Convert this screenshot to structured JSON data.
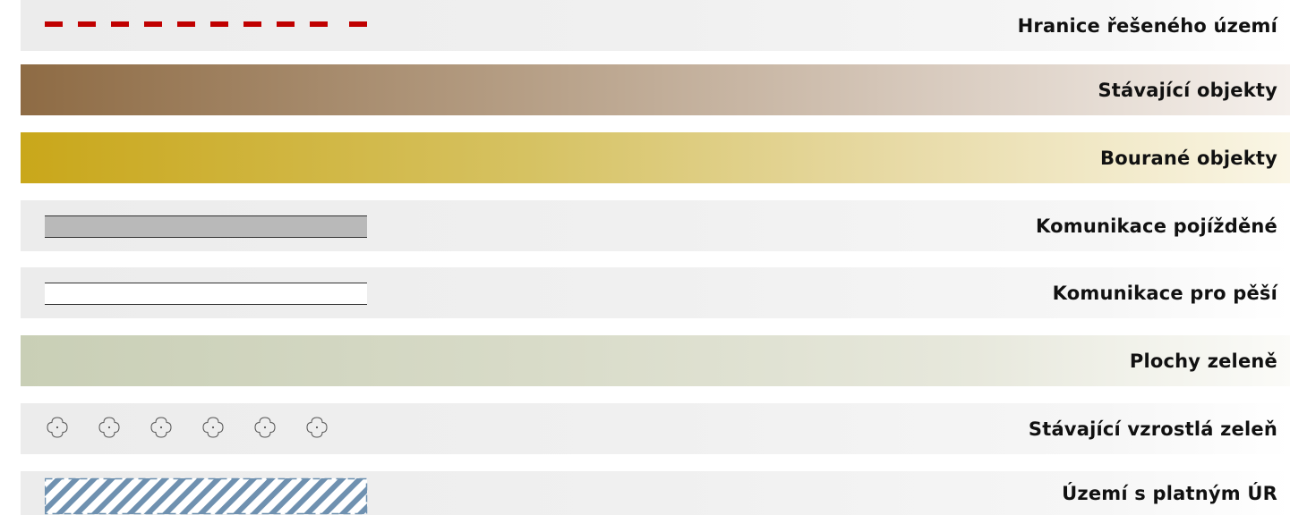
{
  "legend": {
    "items": [
      {
        "label": "Hranice řešeného území",
        "symbol": "red-dashed-line",
        "color": "#c00000"
      },
      {
        "label": "Stávající objekty",
        "symbol": "brown-gradient-fill",
        "color": "#8e6b44"
      },
      {
        "label": "Bourané objekty",
        "symbol": "gold-gradient-fill",
        "color": "#c9a71a"
      },
      {
        "label": "Komunikace pojížděné",
        "symbol": "grey-road-band",
        "color": "#b9b9b9"
      },
      {
        "label": "Komunikace pro pěší",
        "symbol": "white-road-band",
        "color": "#ffffff"
      },
      {
        "label": "Plochy zeleně",
        "symbol": "green-gradient-fill",
        "color": "#c9cfb6"
      },
      {
        "label": "Stávající vzrostlá zeleň",
        "symbol": "tree-icons",
        "color": "#555555"
      },
      {
        "label": "Území s platným ÚR",
        "symbol": "blue-hatch",
        "color": "#6f91b0"
      }
    ]
  }
}
